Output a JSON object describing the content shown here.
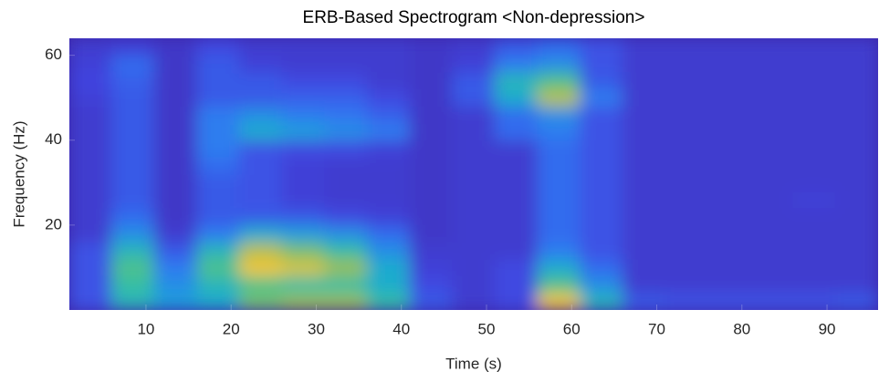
{
  "chart_data": {
    "type": "heatmap",
    "title": "ERB-Based Spectrogram <Non-depression>",
    "x_label": "Time (s)",
    "y_label": "Frequency (Hz)",
    "xlim": [
      1,
      96
    ],
    "ylim": [
      0,
      64
    ],
    "xticks": [
      10,
      20,
      30,
      40,
      50,
      60,
      70,
      80,
      90
    ],
    "yticks": [
      20,
      40,
      60
    ],
    "x_bins": [
      1,
      6,
      11,
      16,
      21,
      26,
      31,
      36,
      41,
      46,
      51,
      56,
      61,
      66,
      71,
      76,
      81,
      86,
      91,
      96
    ],
    "y_bins": [
      0,
      4,
      8,
      12,
      16,
      20,
      24,
      28,
      32,
      36,
      40,
      44,
      48,
      52,
      56,
      60,
      64
    ],
    "colormap": [
      "#3e26a8",
      "#4046e0",
      "#2f78f2",
      "#1ba8d6",
      "#39c29c",
      "#a4be4a",
      "#f5c63a",
      "#f9fb14"
    ],
    "z": [
      [
        0.18,
        0.18,
        0.18,
        0.18,
        0.1,
        0.1,
        0.1,
        0.1,
        0.1,
        0.1,
        0.1,
        0.1,
        0.12,
        0.14,
        0.12,
        0.1
      ],
      [
        0.5,
        0.55,
        0.6,
        0.5,
        0.35,
        0.25,
        0.2,
        0.2,
        0.2,
        0.2,
        0.2,
        0.2,
        0.2,
        0.22,
        0.25,
        0.12
      ],
      [
        0.4,
        0.35,
        0.3,
        0.2,
        0.1,
        0.08,
        0.08,
        0.08,
        0.08,
        0.08,
        0.08,
        0.08,
        0.08,
        0.08,
        0.08,
        0.08
      ],
      [
        0.45,
        0.5,
        0.6,
        0.5,
        0.3,
        0.2,
        0.2,
        0.2,
        0.25,
        0.3,
        0.3,
        0.3,
        0.2,
        0.2,
        0.2,
        0.15
      ],
      [
        0.65,
        0.6,
        0.85,
        0.75,
        0.45,
        0.2,
        0.18,
        0.18,
        0.18,
        0.18,
        0.45,
        0.35,
        0.2,
        0.2,
        0.12,
        0.1
      ],
      [
        0.7,
        0.55,
        0.8,
        0.65,
        0.4,
        0.2,
        0.12,
        0.12,
        0.12,
        0.15,
        0.4,
        0.3,
        0.22,
        0.15,
        0.1,
        0.1
      ],
      [
        0.7,
        0.55,
        0.7,
        0.55,
        0.35,
        0.15,
        0.1,
        0.1,
        0.1,
        0.15,
        0.35,
        0.28,
        0.22,
        0.15,
        0.1,
        0.1
      ],
      [
        0.55,
        0.45,
        0.45,
        0.35,
        0.25,
        0.12,
        0.1,
        0.1,
        0.1,
        0.12,
        0.3,
        0.22,
        0.15,
        0.1,
        0.1,
        0.1
      ],
      [
        0.2,
        0.15,
        0.12,
        0.1,
        0.08,
        0.08,
        0.08,
        0.08,
        0.08,
        0.08,
        0.08,
        0.08,
        0.08,
        0.08,
        0.08,
        0.08
      ],
      [
        0.1,
        0.1,
        0.1,
        0.1,
        0.1,
        0.1,
        0.1,
        0.1,
        0.1,
        0.1,
        0.1,
        0.1,
        0.2,
        0.2,
        0.12,
        0.1
      ],
      [
        0.15,
        0.15,
        0.15,
        0.1,
        0.1,
        0.1,
        0.1,
        0.1,
        0.1,
        0.1,
        0.25,
        0.25,
        0.45,
        0.5,
        0.3,
        0.2
      ],
      [
        0.85,
        0.6,
        0.45,
        0.3,
        0.25,
        0.25,
        0.25,
        0.25,
        0.25,
        0.25,
        0.3,
        0.35,
        0.75,
        0.6,
        0.35,
        0.25
      ],
      [
        0.5,
        0.35,
        0.25,
        0.18,
        0.18,
        0.18,
        0.18,
        0.18,
        0.18,
        0.18,
        0.18,
        0.18,
        0.3,
        0.2,
        0.18,
        0.18
      ],
      [
        0.2,
        0.1,
        0.1,
        0.1,
        0.1,
        0.1,
        0.1,
        0.1,
        0.1,
        0.1,
        0.1,
        0.1,
        0.1,
        0.1,
        0.1,
        0.1
      ],
      [
        0.18,
        0.1,
        0.1,
        0.1,
        0.1,
        0.1,
        0.1,
        0.1,
        0.1,
        0.1,
        0.1,
        0.1,
        0.1,
        0.1,
        0.1,
        0.1
      ],
      [
        0.18,
        0.1,
        0.1,
        0.1,
        0.1,
        0.1,
        0.1,
        0.1,
        0.1,
        0.1,
        0.1,
        0.1,
        0.1,
        0.1,
        0.1,
        0.1
      ],
      [
        0.18,
        0.1,
        0.1,
        0.1,
        0.1,
        0.1,
        0.1,
        0.1,
        0.1,
        0.1,
        0.1,
        0.1,
        0.1,
        0.1,
        0.1,
        0.1
      ],
      [
        0.18,
        0.1,
        0.1,
        0.1,
        0.1,
        0.1,
        0.12,
        0.1,
        0.1,
        0.1,
        0.1,
        0.1,
        0.1,
        0.1,
        0.1,
        0.1
      ],
      [
        0.2,
        0.1,
        0.1,
        0.1,
        0.1,
        0.1,
        0.1,
        0.1,
        0.1,
        0.1,
        0.1,
        0.1,
        0.1,
        0.1,
        0.1,
        0.1
      ]
    ]
  }
}
